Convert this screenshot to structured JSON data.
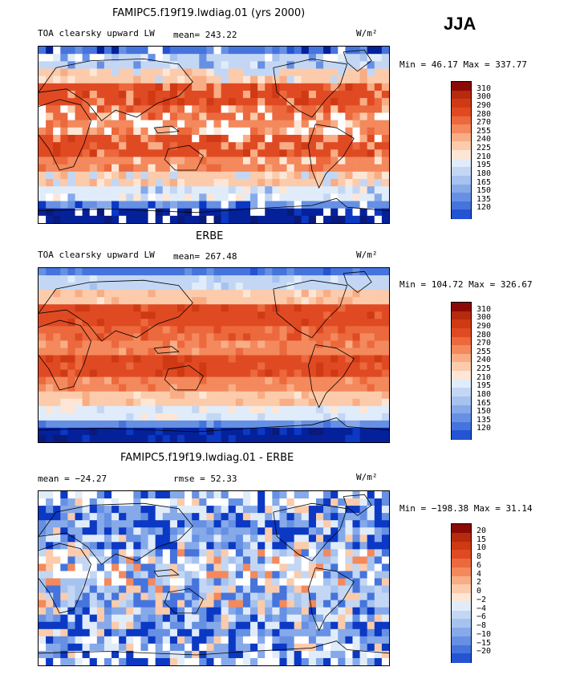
{
  "season": "JJA",
  "colors": {
    "warm": [
      "#fde6d5",
      "#fbcbab",
      "#f8ad85",
      "#f3895d",
      "#ec683d",
      "#e04a23",
      "#cf3a14",
      "#b62a0e",
      "#8b0a06"
    ],
    "cool": [
      "#e0ecfa",
      "#c3d7f4",
      "#a6c2ef",
      "#86a9e9",
      "#6690e3",
      "#4574dd",
      "#2454d4",
      "#0b39c4",
      "#05219a",
      "#0a1a7a"
    ],
    "coast": "#000000",
    "missing": "#ffffff"
  },
  "panels": [
    {
      "title": "FAMIPC5.f19f19.lwdiag.01 (yrs 2000)",
      "variable": "TOA clearsky upward LW",
      "mean_text": "mean= 243.22",
      "units": "W/m²",
      "minmax": "Min =  46.17 Max = 337.77",
      "min": 46.17,
      "max": 337.77,
      "mean": 243.22,
      "levels": [
        "310",
        "300",
        "290",
        "280",
        "270",
        "255",
        "240",
        "225",
        "210",
        "195",
        "180",
        "165",
        "150",
        "135",
        "120"
      ]
    },
    {
      "title": "ERBE",
      "variable": "TOA clearsky upward LW",
      "mean_text": "mean= 267.48",
      "units": "W/m²",
      "minmax": "Min = 104.72 Max = 326.67",
      "min": 104.72,
      "max": 326.67,
      "mean": 267.48,
      "levels": [
        "310",
        "300",
        "290",
        "280",
        "270",
        "255",
        "240",
        "225",
        "210",
        "195",
        "180",
        "165",
        "150",
        "135",
        "120"
      ]
    },
    {
      "title": "FAMIPC5.f19f19.lwdiag.01 - ERBE",
      "mean_text": "mean = −24.27",
      "rmse_text": "rmse =   52.33",
      "units": "W/m²",
      "minmax": "Min = −198.38 Max =  31.14",
      "min": -198.38,
      "max": 31.14,
      "mean": -24.27,
      "rmse": 52.33,
      "levels": [
        "20",
        "15",
        "10",
        "8",
        "6",
        "4",
        "2",
        "0",
        "−2",
        "−4",
        "−6",
        "−8",
        "−10",
        "−15",
        "−20"
      ]
    }
  ],
  "chart_data": [
    {
      "type": "heatmap",
      "title": "FAMIPC5.f19f19.lwdiag.01 (yrs 2000)",
      "variable": "TOA clearsky upward LW",
      "units": "W/m²",
      "season": "JJA",
      "mean": 243.22,
      "min": 46.17,
      "max": 337.77,
      "contour_levels": [
        120,
        135,
        150,
        165,
        180,
        195,
        210,
        225,
        240,
        255,
        270,
        280,
        290,
        300,
        310
      ]
    },
    {
      "type": "heatmap",
      "title": "ERBE",
      "variable": "TOA clearsky upward LW",
      "units": "W/m²",
      "season": "JJA",
      "mean": 267.48,
      "min": 104.72,
      "max": 326.67,
      "contour_levels": [
        120,
        135,
        150,
        165,
        180,
        195,
        210,
        225,
        240,
        255,
        270,
        280,
        290,
        300,
        310
      ]
    },
    {
      "type": "heatmap",
      "title": "FAMIPC5.f19f19.lwdiag.01 - ERBE",
      "units": "W/m²",
      "season": "JJA",
      "mean": -24.27,
      "rmse": 52.33,
      "min": -198.38,
      "max": 31.14,
      "contour_levels": [
        -20,
        -15,
        -10,
        -8,
        -6,
        -4,
        -2,
        0,
        2,
        4,
        6,
        8,
        10,
        15,
        20
      ]
    }
  ]
}
